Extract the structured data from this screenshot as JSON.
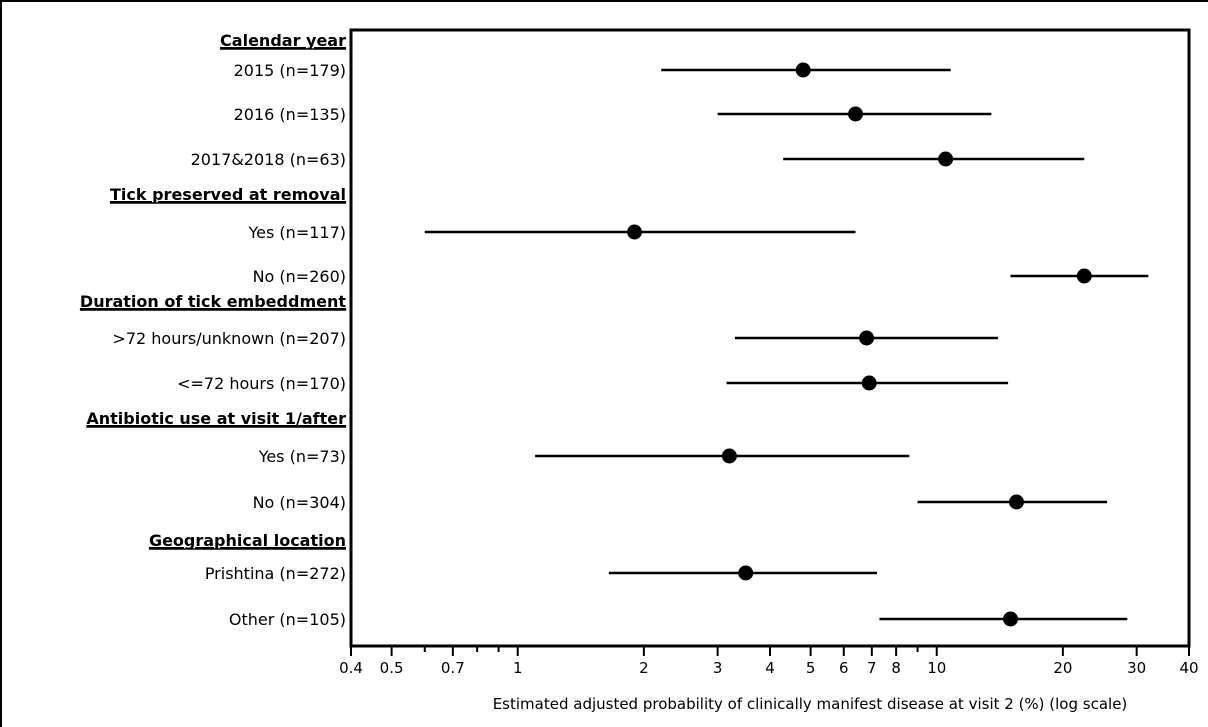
{
  "chart_data": {
    "type": "forest",
    "xlabel": "Estimated adjusted probability of clinically manifest disease at visit 2 (%) (log scale)",
    "x_scale": "log",
    "xlim": [
      0.4,
      40
    ],
    "x_ticks": [
      {
        "value": 0.4,
        "label": "0.4"
      },
      {
        "value": 0.5,
        "label": "0.5"
      },
      {
        "value": 0.7,
        "label": "0.7"
      },
      {
        "value": 1,
        "label": "1"
      },
      {
        "value": 2,
        "label": "2"
      },
      {
        "value": 3,
        "label": "3"
      },
      {
        "value": 4,
        "label": "4"
      },
      {
        "value": 5,
        "label": "5"
      },
      {
        "value": 6,
        "label": "6"
      },
      {
        "value": 7,
        "label": "7"
      },
      {
        "value": 8,
        "label": "8"
      },
      {
        "value": 10,
        "label": "10"
      },
      {
        "value": 20,
        "label": "20"
      },
      {
        "value": 30,
        "label": "30"
      },
      {
        "value": 40,
        "label": "40"
      }
    ],
    "x_minor_ticks": [
      0.6,
      0.8,
      0.9,
      9
    ],
    "grid": false,
    "rows": [
      {
        "kind": "group",
        "label": "Calendar year"
      },
      {
        "kind": "item",
        "label": "2015 (n=179)",
        "estimate": 4.8,
        "lower": 2.2,
        "upper": 10.8
      },
      {
        "kind": "item",
        "label": "2016 (n=135)",
        "estimate": 6.4,
        "lower": 3.0,
        "upper": 13.5
      },
      {
        "kind": "item",
        "label": "2017&2018 (n=63)",
        "estimate": 10.5,
        "lower": 4.3,
        "upper": 22.5
      },
      {
        "kind": "group",
        "label": "Tick preserved at removal"
      },
      {
        "kind": "item",
        "label": "Yes (n=117)",
        "estimate": 1.9,
        "lower": 0.6,
        "upper": 6.4
      },
      {
        "kind": "item",
        "label": "No (n=260)",
        "estimate": 22.5,
        "lower": 15.0,
        "upper": 32.0
      },
      {
        "kind": "group",
        "label": "Duration of tick embeddment"
      },
      {
        "kind": "item",
        "label": ">72 hours/unknown (n=207)",
        "estimate": 6.8,
        "lower": 3.3,
        "upper": 14.0
      },
      {
        "kind": "item",
        "label": "<=72 hours (n=170)",
        "estimate": 6.9,
        "lower": 3.15,
        "upper": 14.8
      },
      {
        "kind": "group",
        "label": "Antibiotic use at visit 1/after"
      },
      {
        "kind": "item",
        "label": "Yes (n=73)",
        "estimate": 3.2,
        "lower": 1.1,
        "upper": 8.6
      },
      {
        "kind": "item",
        "label": "No (n=304)",
        "estimate": 15.5,
        "lower": 9.0,
        "upper": 25.5
      },
      {
        "kind": "group",
        "label": "Geographical location"
      },
      {
        "kind": "item",
        "label": "Prishtina (n=272)",
        "estimate": 3.5,
        "lower": 1.65,
        "upper": 7.2
      },
      {
        "kind": "item",
        "label": "Other (n=105)",
        "estimate": 15.0,
        "lower": 7.3,
        "upper": 28.5
      }
    ]
  }
}
